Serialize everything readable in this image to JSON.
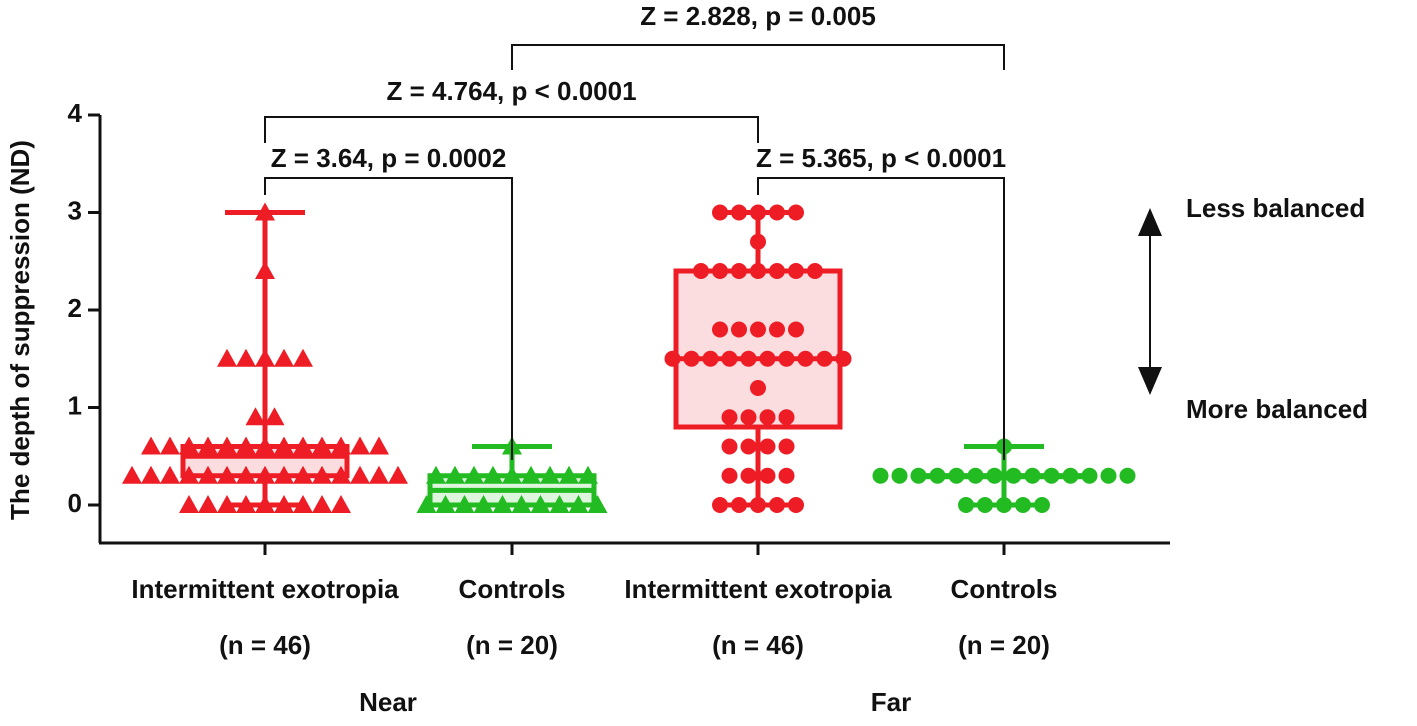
{
  "chart_data": {
    "type": "box",
    "y_label": "The depth of suppression (ND)",
    "ylim": [
      -0.4,
      4
    ],
    "yticks": [
      0,
      1,
      2,
      3,
      4
    ],
    "groups": [
      {
        "label": "Intermittent exotropia",
        "n_label": "(n = 46)",
        "color": "#ee1c25",
        "marker": "triangle",
        "min": 0,
        "q1": 0.3,
        "median": 0.5,
        "q3": 0.6,
        "max": 3,
        "points": [
          0,
          0,
          0,
          0,
          0,
          0,
          0,
          0,
          0,
          0.3,
          0.3,
          0.3,
          0.3,
          0.3,
          0.3,
          0.3,
          0.3,
          0.3,
          0.3,
          0.3,
          0.3,
          0.3,
          0.3,
          0.3,
          0.6,
          0.6,
          0.6,
          0.6,
          0.6,
          0.6,
          0.6,
          0.6,
          0.6,
          0.6,
          0.6,
          0.6,
          0.6,
          0.9,
          0.9,
          1.5,
          1.5,
          1.5,
          1.5,
          1.5,
          2.4,
          3
        ]
      },
      {
        "label": "Controls",
        "n_label": "(n = 20)",
        "color": "#22bb22",
        "marker": "triangle",
        "min": 0,
        "q1": 0,
        "median": 0.15,
        "q3": 0.3,
        "max": 0.6,
        "points": [
          0,
          0,
          0,
          0,
          0,
          0,
          0,
          0,
          0,
          0,
          0.3,
          0.3,
          0.3,
          0.3,
          0.3,
          0.3,
          0.3,
          0.3,
          0.3,
          0.6
        ]
      },
      {
        "label": "Intermittent exotropia",
        "n_label": "(n = 46)",
        "color": "#ee1c25",
        "marker": "circle",
        "min": 0,
        "q1": 0.8,
        "median": 1.5,
        "q3": 2.4,
        "max": 3,
        "points": [
          0,
          0,
          0,
          0,
          0,
          0.3,
          0.3,
          0.3,
          0.3,
          0.6,
          0.6,
          0.6,
          0.6,
          0.9,
          0.9,
          0.9,
          0.9,
          1.2,
          1.5,
          1.5,
          1.5,
          1.5,
          1.5,
          1.5,
          1.5,
          1.5,
          1.5,
          1.5,
          1.8,
          1.8,
          1.8,
          1.8,
          1.8,
          2.4,
          2.4,
          2.4,
          2.4,
          2.4,
          2.4,
          2.4,
          2.7,
          3,
          3,
          3,
          3,
          3
        ]
      },
      {
        "label": "Controls",
        "n_label": "(n = 20)",
        "color": "#22bb22",
        "marker": "circle",
        "min": 0,
        "q1": 0.3,
        "median": 0.3,
        "q3": 0.3,
        "max": 0.6,
        "points": [
          0,
          0,
          0,
          0,
          0,
          0.3,
          0.3,
          0.3,
          0.3,
          0.3,
          0.3,
          0.3,
          0.3,
          0.3,
          0.3,
          0.3,
          0.3,
          0.3,
          0.3,
          0.6
        ]
      }
    ],
    "conditions": [
      "Near",
      "Far"
    ],
    "annotations": [
      "Z = 3.64, p = 0.0002",
      "Z = 5.365, p < 0.0001",
      "Z = 4.764, p < 0.0001",
      "Z = 2.828, p = 0.005"
    ],
    "scale_labels": [
      "Less balanced",
      "More balanced"
    ]
  }
}
